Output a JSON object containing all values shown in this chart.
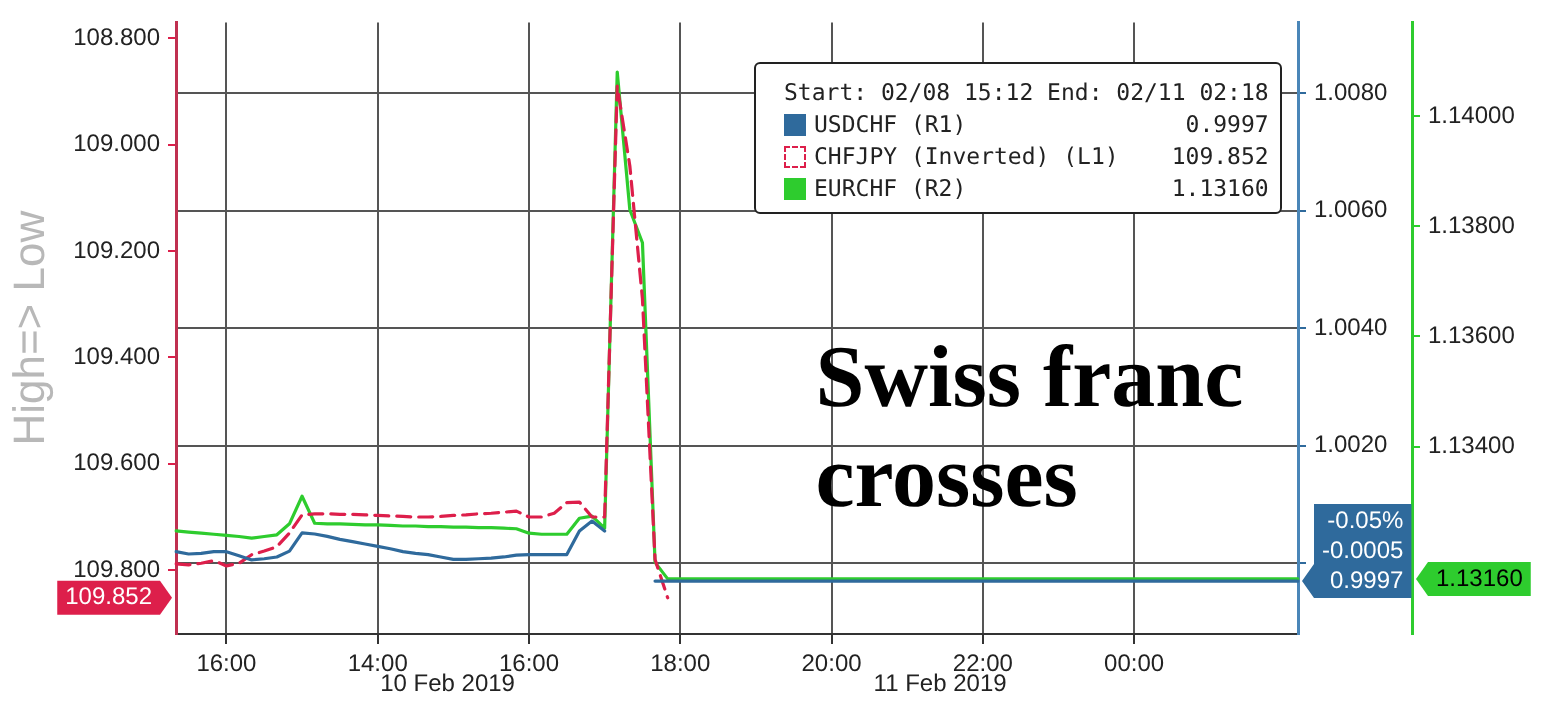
{
  "chart_data": {
    "type": "line",
    "ylabel": "High=> Low",
    "legend_title": "Start: 02/08 15:12 End: 02/11 02:18",
    "legend": "top right",
    "grid": true,
    "marker": "none",
    "categories": [
      null,
      null,
      null,
      null,
      "16:00",
      null,
      null,
      null,
      null,
      null,
      null,
      null,
      null,
      null,
      null,
      null,
      "14:00",
      null,
      null,
      null,
      null,
      null,
      null,
      null,
      null,
      null,
      null,
      null,
      "16:00",
      null,
      null,
      null,
      null,
      null,
      null,
      null,
      null,
      null,
      null,
      null,
      "18:00",
      null,
      null,
      null,
      null,
      null,
      null,
      null,
      null,
      null,
      null,
      null,
      "20:00",
      null,
      null,
      null,
      null,
      null,
      null,
      null,
      null,
      null,
      null,
      null,
      "22:00",
      null,
      null,
      null,
      null,
      null,
      null,
      null,
      null,
      null,
      null,
      null,
      "00:00",
      null,
      null,
      null,
      null,
      null,
      null,
      null,
      null,
      null,
      null,
      null,
      null,
      null
    ],
    "ylim": [
      109.92,
      108.77
    ],
    "yticks": [
      {
        "value": 108.8,
        "label": "108.800"
      },
      {
        "value": 109,
        "label": "109.000"
      },
      {
        "value": 109.2,
        "label": "109.200"
      },
      {
        "value": 109.4,
        "label": "109.400"
      },
      {
        "value": 109.6,
        "label": "109.600"
      },
      {
        "value": 109.8,
        "label": "109.800"
      }
    ],
    "y2lim": [
      0.9988,
      1.0092
    ],
    "y2ticks": [
      {
        "value": 1.008,
        "label": "1.0080"
      },
      {
        "value": 1.006,
        "label": "1.0060"
      },
      {
        "value": 1.004,
        "label": "1.0040"
      },
      {
        "value": 1.002,
        "label": "1.0020"
      },
      {
        "value": 1,
        "label": null
      }
    ],
    "y3lim": [
      1.1306,
      1.1417
    ],
    "y3ticks": [
      {
        "value": 1.14,
        "label": "1.14000"
      },
      {
        "value": 1.138,
        "label": "1.13800"
      },
      {
        "value": 1.136,
        "label": "1.13600"
      },
      {
        "value": 1.134,
        "label": "1.13400"
      }
    ],
    "annotations": [
      "Swiss franc crosses",
      "10 Feb 2019",
      "11 Feb 2019",
      "109.852",
      "-0.05%",
      "-0.0005",
      "0.9997",
      "1.13160"
    ],
    "series": [
      {
        "name": "USDCHF (R1)",
        "color": "#2f6a9c",
        "axis": "y2",
        "values": [
          1.0002,
          1.00016,
          1.00017,
          1.0002,
          1.0002,
          1.00013,
          1.00006,
          1.00008,
          1.00011,
          1.00021,
          1.00052,
          1.0005,
          1.00046,
          1.00041,
          1.00037,
          1.00033,
          1.00029,
          1.00025,
          1.0002,
          1.00017,
          1.00015,
          1.00011,
          1.00007,
          1.00007,
          1.00008,
          1.00009,
          1.00011,
          1.00014,
          1.00015,
          1.00015,
          1.00015,
          1.00015,
          1.00055,
          1.00072,
          1.00055,
          null,
          null,
          null,
          0.9997,
          0.9997,
          0.9997,
          0.9997,
          0.9997,
          0.9997,
          0.9997,
          0.9997,
          0.9997,
          0.9997,
          0.9997,
          0.9997,
          0.9997,
          0.9997,
          0.9997,
          0.9997,
          0.9997,
          0.9997,
          0.9997,
          0.9997,
          0.9997,
          0.9997,
          0.9997,
          0.9997,
          0.9997,
          0.9997,
          0.9997,
          0.9997,
          0.9997,
          0.9997,
          0.9997,
          0.9997,
          0.9997,
          0.9997,
          0.9997,
          0.9997,
          0.9997,
          0.9997,
          0.9997,
          0.9997,
          0.9997,
          0.9997,
          0.9997,
          0.9997,
          0.9997,
          0.9997,
          0.9997,
          0.9997,
          0.9997,
          0.9997,
          0.9997,
          0.9997
        ]
      },
      {
        "name": "CHFJPY (Inverted) (L1)",
        "color": "#dd1f4b",
        "line_style": "dashed",
        "values": [
          109.788,
          109.79,
          109.787,
          109.782,
          109.792,
          109.787,
          109.771,
          109.764,
          109.756,
          109.73,
          109.696,
          109.694,
          109.694,
          109.695,
          109.695,
          109.696,
          109.697,
          109.698,
          109.699,
          109.7,
          109.7,
          109.699,
          109.697,
          109.696,
          109.694,
          109.693,
          109.691,
          109.689,
          109.7,
          109.7,
          109.693,
          109.673,
          109.672,
          109.7,
          109.7,
          108.89,
          109.04,
          109.29,
          109.78,
          109.852,
          null,
          null,
          null,
          null,
          null,
          null,
          null,
          null,
          null,
          null,
          null,
          null,
          null,
          null,
          null,
          null,
          null,
          null,
          null,
          null,
          null,
          null,
          null,
          null,
          null,
          null,
          null,
          null,
          null,
          null,
          null,
          null,
          null,
          null,
          null,
          null,
          null,
          null,
          null,
          null,
          null,
          null,
          null,
          null,
          null,
          null,
          null,
          null,
          null,
          null
        ]
      },
      {
        "name": "EURCHF (R2)",
        "color": "#2ecc2e",
        "axis": "y3",
        "values": [
          1.13247,
          1.13245,
          1.13243,
          1.13241,
          1.13239,
          1.13237,
          1.13234,
          1.13237,
          1.1324,
          1.1326,
          1.1331,
          1.13261,
          1.1326,
          1.1326,
          1.13259,
          1.13258,
          1.13258,
          1.13257,
          1.13256,
          1.13256,
          1.13255,
          1.13255,
          1.13254,
          1.13254,
          1.13253,
          1.13253,
          1.13252,
          1.13251,
          1.13243,
          1.13241,
          1.13241,
          1.13241,
          1.1327,
          1.13274,
          1.13252,
          1.1408,
          1.1383,
          1.1377,
          1.1319,
          1.1316,
          1.1316,
          1.1316,
          1.1316,
          1.1316,
          1.1316,
          1.1316,
          1.1316,
          1.1316,
          1.1316,
          1.1316,
          1.1316,
          1.1316,
          1.1316,
          1.1316,
          1.1316,
          1.1316,
          1.1316,
          1.1316,
          1.1316,
          1.1316,
          1.1316,
          1.1316,
          1.1316,
          1.1316,
          1.1316,
          1.1316,
          1.1316,
          1.1316,
          1.1316,
          1.1316,
          1.1316,
          1.1316,
          1.1316,
          1.1316,
          1.1316,
          1.1316,
          1.1316,
          1.1316,
          1.1316,
          1.1316,
          1.1316,
          1.1316,
          1.1316,
          1.1316,
          1.1316,
          1.1316,
          1.1316,
          1.1316,
          1.1316,
          1.1316
        ]
      }
    ]
  }
}
